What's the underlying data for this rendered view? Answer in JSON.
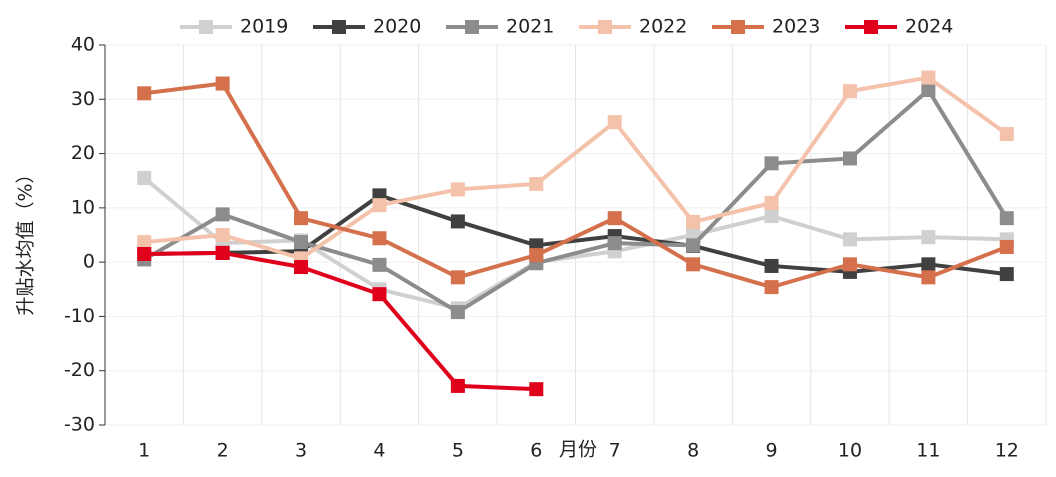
{
  "chart_data": {
    "type": "line",
    "ylabel": "升贴水均值（%）",
    "xlabel": "月份",
    "categories": [
      "1",
      "2",
      "3",
      "4",
      "5",
      "6",
      "7",
      "8",
      "9",
      "10",
      "11",
      "12"
    ],
    "ylim": [
      -30,
      40
    ],
    "yticks": [
      -30,
      -20,
      -10,
      0,
      10,
      20,
      30,
      40
    ],
    "grid": true,
    "legend": "top",
    "series": [
      {
        "name": "2019",
        "color": "#d0d0d0",
        "values": [
          15.5,
          3.5,
          4,
          -5,
          -8.5,
          0,
          2,
          5,
          8.5,
          4.2,
          4.6,
          4.2
        ]
      },
      {
        "name": "2020",
        "color": "#404040",
        "values": [
          1.5,
          1.7,
          2,
          12.3,
          7.5,
          3.1,
          4.8,
          3,
          -0.7,
          -1.8,
          -0.4,
          -2.2
        ]
      },
      {
        "name": "2021",
        "color": "#8c8c8c",
        "values": [
          0.5,
          8.8,
          3.7,
          -0.5,
          -9.2,
          -0.2,
          3.5,
          3.1,
          18.2,
          19.1,
          31.7,
          8.1
        ]
      },
      {
        "name": "2022",
        "color": "#f4c2aa",
        "values": [
          3.7,
          5,
          0.7,
          10.5,
          13.4,
          14.4,
          25.8,
          7.4,
          10.9,
          31.5,
          34,
          23.6
        ]
      },
      {
        "name": "2023",
        "color": "#d4704b",
        "values": [
          31.1,
          32.9,
          8.1,
          4.4,
          -2.8,
          1.3,
          8.1,
          -0.4,
          -4.6,
          -0.4,
          -2.8,
          2.8
        ]
      },
      {
        "name": "2024",
        "color": "#e0001b",
        "values": [
          1.5,
          1.7,
          -0.9,
          -5.9,
          -22.8,
          -23.4,
          null,
          null,
          null,
          null,
          null,
          null
        ]
      }
    ]
  }
}
